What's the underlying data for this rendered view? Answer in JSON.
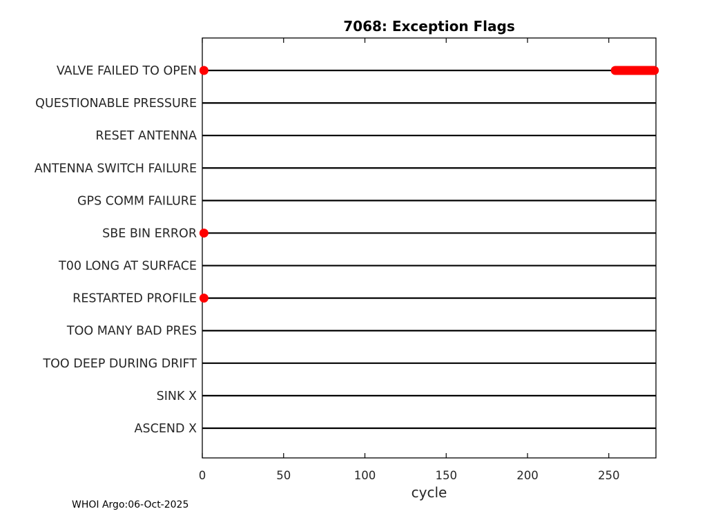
{
  "chart_data": {
    "type": "scatter",
    "title": "7068: Exception Flags",
    "xlabel": "cycle",
    "annotation": "WHOI Argo:06-Oct-2025",
    "xlim": [
      0,
      279
    ],
    "xticks": [
      0,
      50,
      100,
      150,
      200,
      250
    ],
    "grid": false,
    "legend_position": "none",
    "line_color": "#000000",
    "marker_color": "#ff0000",
    "categories": [
      "VALVE FAILED TO OPEN",
      "QUESTIONABLE PRESSURE",
      "RESET ANTENNA",
      "ANTENNA SWITCH FAILURE",
      "GPS COMM FAILURE",
      "SBE BIN ERROR",
      "T00 LONG AT SURFACE",
      "RESTARTED PROFILE",
      "TOO MANY BAD PRES",
      "TOO DEEP DURING DRIFT",
      "SINK X",
      "ASCEND X"
    ],
    "events": [
      {
        "category": "VALVE FAILED TO OPEN",
        "points": [
          1
        ],
        "spans": [
          [
            254,
            278
          ]
        ]
      },
      {
        "category": "QUESTIONABLE PRESSURE",
        "points": [],
        "spans": []
      },
      {
        "category": "RESET ANTENNA",
        "points": [],
        "spans": []
      },
      {
        "category": "ANTENNA SWITCH FAILURE",
        "points": [],
        "spans": []
      },
      {
        "category": "GPS COMM FAILURE",
        "points": [],
        "spans": []
      },
      {
        "category": "SBE BIN ERROR",
        "points": [
          1
        ],
        "spans": []
      },
      {
        "category": "T00 LONG AT SURFACE",
        "points": [],
        "spans": []
      },
      {
        "category": "RESTARTED PROFILE",
        "points": [
          1
        ],
        "spans": []
      },
      {
        "category": "TOO MANY BAD PRES",
        "points": [],
        "spans": []
      },
      {
        "category": "TOO DEEP DURING DRIFT",
        "points": [],
        "spans": []
      },
      {
        "category": "SINK X",
        "points": [],
        "spans": []
      },
      {
        "category": "ASCEND X",
        "points": [],
        "spans": []
      }
    ]
  }
}
